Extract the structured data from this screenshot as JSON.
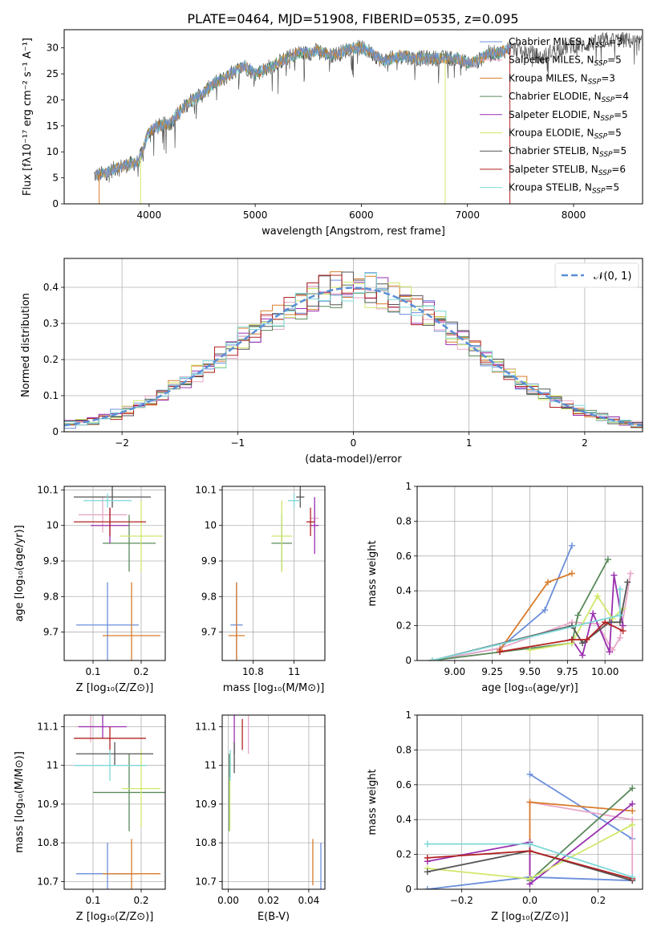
{
  "title": "PLATE=0464, MJD=51908, FIBERID=0535, z=0.095",
  "colors": {
    "Chabrier MILES": "#6b8fdb",
    "Salpeter MILES": "#e8a7c8",
    "Kroupa MILES": "#d97b2a",
    "Chabrier ELODIE": "#5a8a5a",
    "Salpeter ELODIE": "#9a2fb0",
    "Kroupa ELODIE": "#cfe86a",
    "Chabrier STELIB": "#555555",
    "Salpeter STELIB": "#b22222",
    "Kroupa STELIB": "#7fd8d8"
  },
  "chart_data": [
    {
      "id": "spectrum",
      "type": "line",
      "title": "PLATE=0464, MJD=51908, FIBERID=0535, z=0.095",
      "xlabel": "wavelength [Angstrom, rest frame]",
      "ylabel": "Flux [fλ10⁻¹⁷ erg cm⁻² s⁻¹ A⁻¹]",
      "xlim": [
        3200,
        8650
      ],
      "ylim": [
        0,
        33.5
      ],
      "xticks": [
        4000,
        5000,
        6000,
        7000,
        8000
      ],
      "yticks": [
        0,
        5,
        10,
        15,
        20,
        25,
        30
      ],
      "grid": false,
      "legend_position": "right",
      "legend": [
        {
          "label": "Chabrier MILES, N",
          "sub": "SSP",
          "suffix": "=3",
          "series": "Chabrier MILES"
        },
        {
          "label": "Salpeter MILES, N",
          "sub": "SSP",
          "suffix": "=5",
          "series": "Salpeter MILES"
        },
        {
          "label": "Kroupa MILES, N",
          "sub": "SSP",
          "suffix": "=3",
          "series": "Kroupa MILES"
        },
        {
          "label": "Chabrier ELODIE, N",
          "sub": "SSP",
          "suffix": "=4",
          "series": "Chabrier ELODIE"
        },
        {
          "label": "Salpeter ELODIE, N",
          "sub": "SSP",
          "suffix": "=5",
          "series": "Salpeter ELODIE"
        },
        {
          "label": "Kroupa ELODIE, N",
          "sub": "SSP",
          "suffix": "=5",
          "series": "Kroupa ELODIE"
        },
        {
          "label": "Chabrier STELIB, N",
          "sub": "SSP",
          "suffix": "=5",
          "series": "Chabrier STELIB"
        },
        {
          "label": "Salpeter STELIB, N",
          "sub": "SSP",
          "suffix": "=6",
          "series": "Salpeter STELIB"
        },
        {
          "label": "Kroupa STELIB, N",
          "sub": "SSP",
          "suffix": "=5",
          "series": "Kroupa STELIB"
        }
      ],
      "envelope": {
        "x": [
          3500,
          3600,
          3700,
          3800,
          3900,
          3950,
          4000,
          4100,
          4200,
          4300,
          4400,
          4500,
          4600,
          4700,
          4800,
          4900,
          5000,
          5100,
          5200,
          5300,
          5400,
          5500,
          5600,
          5700,
          5800,
          5900,
          6000,
          6100,
          6200,
          6300,
          6400,
          6500,
          6600,
          6700,
          6800,
          6900,
          7000,
          7100,
          7200,
          7300,
          7400,
          7500,
          7600,
          7700,
          7800,
          7900,
          8000,
          8100,
          8200,
          8300,
          8400,
          8500,
          8600
        ],
        "y": [
          5.5,
          6,
          7,
          7.5,
          8,
          11,
          14,
          15,
          15.5,
          18,
          20,
          21,
          23,
          24,
          25.5,
          26.5,
          25,
          26,
          27,
          28,
          29,
          29,
          29.5,
          28.5,
          29,
          30,
          30,
          29,
          27.5,
          28,
          28.5,
          28,
          28,
          28,
          28,
          28,
          27,
          27.5,
          29,
          29,
          30,
          29.5,
          29,
          28,
          29.5,
          30,
          30.5,
          30.5,
          31,
          31.5,
          31.5,
          31.5,
          31
        ]
      },
      "data_series": "Chabrier STELIB",
      "model_series": "Kroupa STELIB",
      "model_x_range": [
        3500,
        7400
      ],
      "spectrum_start": 3480,
      "drops": [
        {
          "series": "Kroupa MILES",
          "x": 3530
        },
        {
          "series": "Kroupa ELODIE",
          "x": 3920
        },
        {
          "series": "Kroupa ELODIE",
          "x": 6790
        },
        {
          "series": "Salpeter STELIB",
          "x": 7400
        }
      ]
    },
    {
      "id": "residuals",
      "type": "histogram",
      "xlabel": "(data-model)/error",
      "ylabel": "Normed distribution",
      "xlim": [
        -2.5,
        2.5
      ],
      "ylim": [
        0,
        0.48
      ],
      "xticks": [
        -2,
        -1,
        0,
        1,
        2
      ],
      "yticks": [
        0,
        0.1,
        0.2,
        0.3,
        0.4
      ],
      "grid": true,
      "legend_position": "top-right",
      "legend": [
        {
          "label": "𝒩(0, 1)",
          "style": "dashed",
          "color": "#5a8fd6"
        }
      ],
      "bin_width": 0.1,
      "x_range": [
        -2.5,
        2.5
      ]
    },
    {
      "id": "age_vs_Z",
      "type": "errorbar",
      "xlabel": "Z [log₁₀(Z/Z⊙)]",
      "ylabel": "age  [log₁₀(age/yr)]",
      "xlim": [
        0.04,
        0.25
      ],
      "ylim": [
        9.62,
        10.11
      ],
      "xticks": [
        0.1,
        0.2
      ],
      "yticks": [
        9.7,
        9.8,
        9.9,
        10.0,
        10.1
      ],
      "grid": true,
      "points": [
        {
          "series": "Chabrier MILES",
          "x": 0.13,
          "y": 9.72,
          "xerr": 0.065,
          "yerr": 0.12
        },
        {
          "series": "Salpeter MILES",
          "x": 0.12,
          "y": 10.03,
          "xerr": 0.05,
          "yerr": 0.05
        },
        {
          "series": "Kroupa MILES",
          "x": 0.18,
          "y": 9.69,
          "xerr": 0.06,
          "yerr": 0.15
        },
        {
          "series": "Chabrier ELODIE",
          "x": 0.175,
          "y": 9.95,
          "xerr": 0.055,
          "yerr": 0.08
        },
        {
          "series": "Salpeter ELODIE",
          "x": 0.135,
          "y": 10.0,
          "xerr": 0.04,
          "yerr": 0.05
        },
        {
          "series": "Kroupa ELODIE",
          "x": 0.2,
          "y": 9.97,
          "xerr": 0.045,
          "yerr": 0.1
        },
        {
          "series": "Chabrier STELIB",
          "x": 0.14,
          "y": 10.08,
          "xerr": 0.08,
          "yerr": 0.03
        },
        {
          "series": "Salpeter STELIB",
          "x": 0.135,
          "y": 10.01,
          "xerr": 0.075,
          "yerr": 0.04
        },
        {
          "series": "Kroupa STELIB",
          "x": 0.13,
          "y": 10.07,
          "xerr": 0.05,
          "yerr": 0.02
        }
      ]
    },
    {
      "id": "age_vs_mass",
      "type": "errorbar",
      "xlabel": "mass [log₁₀(M/M⊙)]",
      "ylabel": "",
      "xlim": [
        10.65,
        11.15
      ],
      "ylim": [
        9.62,
        10.11
      ],
      "xticks": [
        10.8,
        11.0
      ],
      "yticks": [
        9.7,
        9.8,
        9.9,
        10.0,
        10.1
      ],
      "grid": true,
      "points": [
        {
          "series": "Chabrier MILES",
          "x": 10.72,
          "y": 9.72,
          "xerr": 0.03,
          "yerr": 0.12
        },
        {
          "series": "Salpeter MILES",
          "x": 11.1,
          "y": 10.02,
          "xerr": 0.02,
          "yerr": 0.04
        },
        {
          "series": "Kroupa MILES",
          "x": 10.72,
          "y": 9.69,
          "xerr": 0.04,
          "yerr": 0.15
        },
        {
          "series": "Chabrier ELODIE",
          "x": 10.94,
          "y": 9.95,
          "xerr": 0.05,
          "yerr": 0.08
        },
        {
          "series": "Salpeter ELODIE",
          "x": 11.1,
          "y": 10.0,
          "xerr": 0.02,
          "yerr": 0.08
        },
        {
          "series": "Kroupa ELODIE",
          "x": 10.94,
          "y": 9.97,
          "xerr": 0.05,
          "yerr": 0.1
        },
        {
          "series": "Chabrier STELIB",
          "x": 11.03,
          "y": 10.08,
          "xerr": 0.02,
          "yerr": 0.03
        },
        {
          "series": "Salpeter STELIB",
          "x": 11.08,
          "y": 10.01,
          "xerr": 0.02,
          "yerr": 0.04
        },
        {
          "series": "Kroupa STELIB",
          "x": 11.0,
          "y": 10.07,
          "xerr": 0.03,
          "yerr": 0.02
        }
      ]
    },
    {
      "id": "mass_weight_vs_age",
      "type": "line",
      "xlabel": "age  [log₁₀(age/yr)]",
      "ylabel": "mass weight",
      "xlim": [
        8.75,
        10.25
      ],
      "ylim": [
        0,
        1.0
      ],
      "xticks": [
        9.0,
        9.25,
        9.5,
        9.75,
        10.0
      ],
      "xticklabels": [
        "9.00",
        "9.25",
        "9.50",
        "9.75",
        "10.00"
      ],
      "yticks": [
        0,
        0.2,
        0.4,
        0.6,
        0.8,
        1.0
      ],
      "grid": true,
      "series": [
        {
          "name": "Chabrier MILES",
          "x": [
            8.85,
            9.3,
            9.6,
            9.78
          ],
          "y": [
            0.0,
            0.07,
            0.29,
            0.66
          ]
        },
        {
          "name": "Salpeter MILES",
          "x": [
            8.85,
            9.3,
            9.78,
            9.95,
            10.05,
            10.1,
            10.17
          ],
          "y": [
            0.0,
            0.07,
            0.22,
            0.21,
            0.06,
            0.13,
            0.5
          ]
        },
        {
          "name": "Kroupa MILES",
          "x": [
            9.3,
            9.62,
            9.78
          ],
          "y": [
            0.06,
            0.45,
            0.5
          ]
        },
        {
          "name": "Chabrier ELODIE",
          "x": [
            8.85,
            9.78,
            9.82,
            10.02
          ],
          "y": [
            0.0,
            0.1,
            0.26,
            0.58
          ]
        },
        {
          "name": "Salpeter ELODIE",
          "x": [
            9.78,
            9.85,
            9.92,
            10.03,
            10.06,
            10.12
          ],
          "y": [
            0.12,
            0.03,
            0.27,
            0.05,
            0.49,
            0.2
          ]
        },
        {
          "name": "Kroupa ELODIE",
          "x": [
            9.5,
            9.78,
            9.95,
            10.05,
            10.12
          ],
          "y": [
            0.06,
            0.1,
            0.37,
            0.24,
            0.3
          ]
        },
        {
          "name": "Chabrier STELIB",
          "x": [
            8.85,
            9.78,
            9.85,
            10.03,
            10.1,
            10.15
          ],
          "y": [
            0.0,
            0.2,
            0.1,
            0.22,
            0.22,
            0.45
          ]
        },
        {
          "name": "Salpeter STELIB",
          "x": [
            9.3,
            9.78,
            9.88,
            10.0,
            10.12
          ],
          "y": [
            0.05,
            0.12,
            0.12,
            0.22,
            0.17
          ]
        },
        {
          "name": "Kroupa STELIB",
          "x": [
            8.85,
            10.1
          ],
          "y": [
            0.0,
            0.26
          ]
        },
        {
          "name": "Kroupa STELIB",
          "x": [
            10.1,
            10.1
          ],
          "y": [
            0.26,
            0.41
          ]
        }
      ]
    },
    {
      "id": "mass_vs_Z",
      "type": "errorbar",
      "xlabel": "Z [log₁₀(Z/Z⊙)]",
      "ylabel": "mass [log₁₀(M/M⊙)]",
      "xlim": [
        0.04,
        0.25
      ],
      "ylim": [
        10.68,
        11.13
      ],
      "xticks": [
        0.1,
        0.2
      ],
      "yticks": [
        10.7,
        10.8,
        10.9,
        11.0,
        11.1
      ],
      "grid": true,
      "points": [
        {
          "series": "Chabrier MILES",
          "x": 0.13,
          "y": 10.72,
          "xerr": 0.065,
          "yerr": 0.08
        },
        {
          "series": "Salpeter MILES",
          "x": 0.095,
          "y": 11.1,
          "xerr": 0.03,
          "yerr": 0.04
        },
        {
          "series": "Kroupa MILES",
          "x": 0.18,
          "y": 10.72,
          "xerr": 0.06,
          "yerr": 0.09
        },
        {
          "series": "Chabrier ELODIE",
          "x": 0.175,
          "y": 10.93,
          "xerr": 0.075,
          "yerr": 0.1
        },
        {
          "series": "Salpeter ELODIE",
          "x": 0.12,
          "y": 11.1,
          "xerr": 0.05,
          "yerr": 0.03
        },
        {
          "series": "Kroupa ELODIE",
          "x": 0.2,
          "y": 10.94,
          "xerr": 0.04,
          "yerr": 0.1
        },
        {
          "series": "Chabrier STELIB",
          "x": 0.145,
          "y": 11.03,
          "xerr": 0.08,
          "yerr": 0.03
        },
        {
          "series": "Salpeter STELIB",
          "x": 0.135,
          "y": 11.07,
          "xerr": 0.075,
          "yerr": 0.03
        },
        {
          "series": "Kroupa STELIB",
          "x": 0.135,
          "y": 11.0,
          "xerr": 0.075,
          "yerr": 0.04
        }
      ]
    },
    {
      "id": "mass_vs_ebv",
      "type": "errorbar",
      "xlabel": "E(B-V)",
      "ylabel": "",
      "xlim": [
        -0.003,
        0.048
      ],
      "ylim": [
        10.68,
        11.13
      ],
      "xticks": [
        0.0,
        0.02,
        0.04
      ],
      "xticklabels": [
        "0.00",
        "0.02",
        "0.04"
      ],
      "yticks": [
        10.7,
        10.8,
        10.9,
        11.0,
        11.1
      ],
      "grid": true,
      "points": [
        {
          "series": "Chabrier MILES",
          "x": 0.046,
          "y": 10.74,
          "xerr": 0,
          "yerr": 0.06
        },
        {
          "series": "Salpeter MILES",
          "x": 0.01,
          "y": 11.08,
          "xerr": 0,
          "yerr": 0.05
        },
        {
          "series": "Kroupa MILES",
          "x": 0.042,
          "y": 10.75,
          "xerr": 0,
          "yerr": 0.06
        },
        {
          "series": "Chabrier ELODIE",
          "x": 0.0005,
          "y": 10.93,
          "xerr": 0,
          "yerr": 0.1
        },
        {
          "series": "Salpeter ELODIE",
          "x": 0.003,
          "y": 11.08,
          "xerr": 0,
          "yerr": 0.05
        },
        {
          "series": "Kroupa ELODIE",
          "x": 0.0008,
          "y": 10.9,
          "xerr": 0,
          "yerr": 0.07
        },
        {
          "series": "Chabrier STELIB",
          "x": 0.003,
          "y": 11.02,
          "xerr": 0,
          "yerr": 0.04
        },
        {
          "series": "Salpeter STELIB",
          "x": 0.007,
          "y": 11.08,
          "xerr": 0,
          "yerr": 0.04
        },
        {
          "series": "Kroupa STELIB",
          "x": 0.001,
          "y": 11.0,
          "xerr": 0,
          "yerr": 0.04
        }
      ]
    },
    {
      "id": "mass_weight_vs_Z",
      "type": "line",
      "xlabel": "Z [log₁₀(Z/Z⊙)]",
      "ylabel": "mass weight",
      "xlim": [
        -0.33,
        0.33
      ],
      "ylim": [
        0,
        1.0
      ],
      "xticks": [
        -0.2,
        0.0,
        0.2
      ],
      "xticklabels": [
        "−0.2",
        "0.0",
        "0.2"
      ],
      "yticks": [
        0,
        0.2,
        0.4,
        0.6,
        0.8,
        1.0
      ],
      "grid": true,
      "series": [
        {
          "name": "Chabrier MILES",
          "x": [
            0.0,
            0.3
          ],
          "y": [
            0.66,
            0.29
          ]
        },
        {
          "name": "Chabrier MILES",
          "x": [
            -0.3,
            0.0,
            0.3
          ],
          "y": [
            0.0,
            0.07,
            0.05
          ]
        },
        {
          "name": "Salpeter MILES",
          "x": [
            0.0,
            0.3,
            0.3
          ],
          "y": [
            0.5,
            0.4,
            0.06
          ]
        },
        {
          "name": "Kroupa MILES",
          "x": [
            0.0,
            0.0,
            0.3
          ],
          "y": [
            0.06,
            0.5,
            0.45
          ]
        },
        {
          "name": "Chabrier ELODIE",
          "x": [
            0.0,
            0.3
          ],
          "y": [
            0.05,
            0.58
          ]
        },
        {
          "name": "Salpeter ELODIE",
          "x": [
            -0.3,
            0.0,
            0.0,
            0.3
          ],
          "y": [
            0.16,
            0.27,
            0.03,
            0.49
          ]
        },
        {
          "name": "Kroupa ELODIE",
          "x": [
            -0.3,
            0.0,
            0.3
          ],
          "y": [
            0.12,
            0.06,
            0.37
          ]
        },
        {
          "name": "Chabrier STELIB",
          "x": [
            -0.3,
            0.0,
            0.3
          ],
          "y": [
            0.1,
            0.22,
            0.05
          ]
        },
        {
          "name": "Salpeter STELIB",
          "x": [
            -0.3,
            0.0,
            0.3
          ],
          "y": [
            0.18,
            0.22,
            0.06
          ]
        },
        {
          "name": "Kroupa STELIB",
          "x": [
            -0.3,
            0.0,
            0.3
          ],
          "y": [
            0.26,
            0.26,
            0.07
          ]
        }
      ]
    }
  ]
}
